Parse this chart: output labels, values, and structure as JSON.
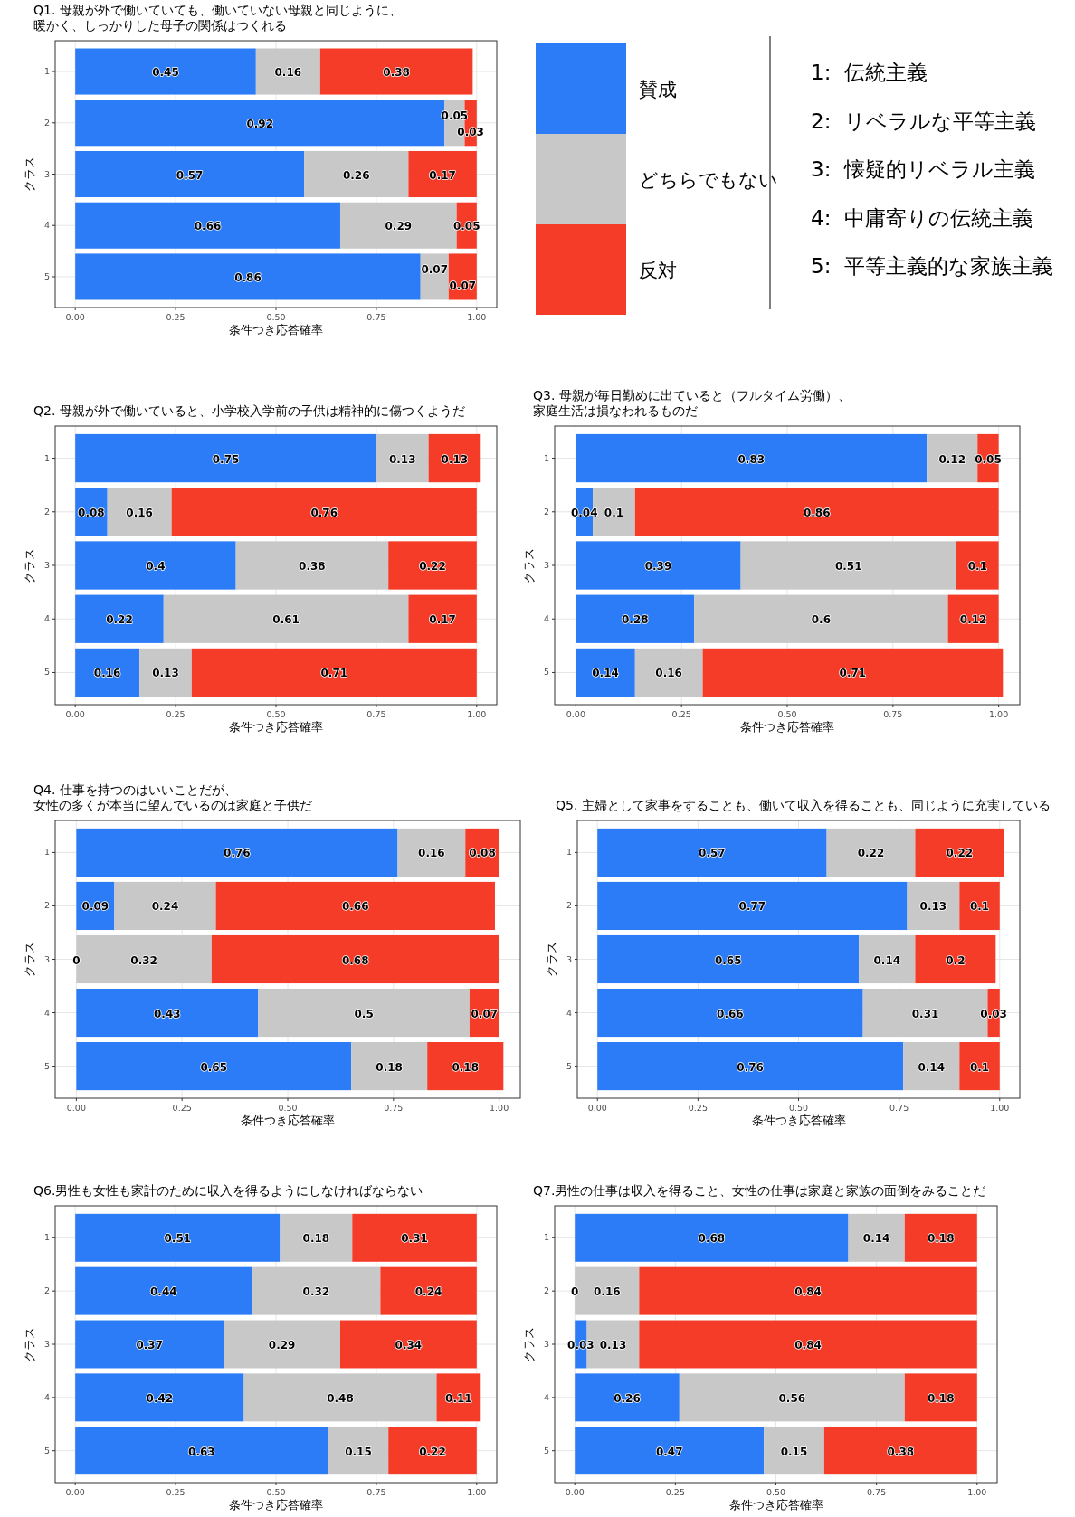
{
  "chart_data": [
    {
      "type": "bar",
      "orientation": "horizontal",
      "stacked": true,
      "title": "Q1. 母親が外で働いていても、働いていない母親と同じように、暖かく、しっかりした母子の関係はつくれる",
      "xlabel": "条件つき応答確率",
      "ylabel": "クラス",
      "categories": [
        "1",
        "2",
        "3",
        "4",
        "5"
      ],
      "series": [
        {
          "name": "賛成",
          "color": "#2b7cf6",
          "values": [
            0.45,
            0.92,
            0.57,
            0.66,
            0.86
          ]
        },
        {
          "name": "どちらでもない",
          "color": "#c8c8c8",
          "values": [
            0.16,
            0.05,
            0.26,
            0.29,
            0.07
          ]
        },
        {
          "name": "反対",
          "color": "#f43c28",
          "values": [
            0.38,
            0.03,
            0.17,
            0.05,
            0.07
          ]
        }
      ],
      "xlim": [
        -0.05,
        1.05
      ],
      "xticks": [
        {
          "value": 0,
          "label": "0.00"
        },
        {
          "value": 0.25,
          "label": "0.25"
        },
        {
          "value": 0.5,
          "label": "0.50"
        },
        {
          "value": 0.75,
          "label": "0.75"
        },
        {
          "value": 1,
          "label": "1.00"
        }
      ],
      "grid": true,
      "data_labels": true,
      "legend": "right"
    },
    {
      "type": "other",
      "annotations": [
        "1:  伝統主義",
        "2:  リベラルな平等主義",
        "3:  懐疑的リベラル主義",
        "4:  中庸寄りの伝統主義",
        "5:  平等主義的な家族主義"
      ]
    },
    {
      "type": "bar",
      "orientation": "horizontal",
      "stacked": true,
      "title": "Q2. 母親が外で働いていると、小学校入学前の子供は精神的に傷つくようだ",
      "xlabel": "条件つき応答確率",
      "ylabel": "クラス",
      "categories": [
        "1",
        "2",
        "3",
        "4",
        "5"
      ],
      "series": [
        {
          "color": "#2b7cf6",
          "values": [
            0.75,
            0.08,
            0.4,
            0.22,
            0.16
          ]
        },
        {
          "color": "#c8c8c8",
          "values": [
            0.13,
            0.16,
            0.38,
            0.61,
            0.13
          ]
        },
        {
          "color": "#f43c28",
          "values": [
            0.13,
            0.76,
            0.22,
            0.17,
            0.71
          ]
        }
      ],
      "xlim": [
        -0.05,
        1.05
      ],
      "xticks": [
        {
          "value": 0,
          "label": "0.00"
        },
        {
          "value": 0.25,
          "label": "0.25"
        },
        {
          "value": 0.5,
          "label": "0.50"
        },
        {
          "value": 0.75,
          "label": "0.75"
        },
        {
          "value": 1,
          "label": "1.00"
        }
      ],
      "grid": true,
      "data_labels": true
    },
    {
      "type": "bar",
      "orientation": "horizontal",
      "stacked": true,
      "title": "Q3. 母親が毎日勤めに出ていると（フルタイム労働）、家庭生活は損なわれるものだ",
      "xlabel": "条件つき応答確率",
      "ylabel": "クラス",
      "categories": [
        "1",
        "2",
        "3",
        "4",
        "5"
      ],
      "series": [
        {
          "color": "#2b7cf6",
          "values": [
            0.83,
            0.04,
            0.39,
            0.28,
            0.14
          ]
        },
        {
          "color": "#c8c8c8",
          "values": [
            0.12,
            0.1,
            0.51,
            0.6,
            0.16
          ]
        },
        {
          "color": "#f43c28",
          "values": [
            0.05,
            0.86,
            0.1,
            0.12,
            0.71
          ]
        }
      ],
      "xlim": [
        -0.05,
        1.05
      ],
      "xticks": [
        {
          "value": 0,
          "label": "0.00"
        },
        {
          "value": 0.25,
          "label": "0.25"
        },
        {
          "value": 0.5,
          "label": "0.50"
        },
        {
          "value": 0.75,
          "label": "0.75"
        },
        {
          "value": 1,
          "label": "1.00"
        }
      ],
      "grid": true,
      "data_labels": true
    },
    {
      "type": "bar",
      "orientation": "horizontal",
      "stacked": true,
      "title": "Q4. 仕事を持つのはいいことだが、女性の多くが本当に望んでいるのは家庭と子供だ",
      "xlabel": "条件つき応答確率",
      "ylabel": "クラス",
      "categories": [
        "1",
        "2",
        "3",
        "4",
        "5"
      ],
      "series": [
        {
          "color": "#2b7cf6",
          "values": [
            0.76,
            0.09,
            0,
            0.43,
            0.65
          ],
          "value_labels": [
            "0.76",
            "0.09",
            null,
            "0.43",
            "0.65"
          ]
        },
        {
          "color": "#c8c8c8",
          "values": [
            0.16,
            0.24,
            0.32,
            0.5,
            0.18
          ],
          "value_labels": [
            "0.16",
            "0.24",
            "0.32",
            "0.5",
            "0.18"
          ]
        },
        {
          "color": "#f43c28",
          "values": [
            0.08,
            0.66,
            0.68,
            0.07,
            0.18
          ],
          "value_labels": [
            "0.08",
            "0.66",
            "0.68",
            "0.07",
            "0.18"
          ]
        }
      ],
      "annotations": [
        {
          "text": "0",
          "x": 0,
          "y": "3"
        }
      ],
      "xlim": [
        -0.05,
        1.05
      ],
      "xticks": [
        {
          "value": 0,
          "label": "0.00"
        },
        {
          "value": 0.25,
          "label": "0.25"
        },
        {
          "value": 0.5,
          "label": "0.50"
        },
        {
          "value": 0.75,
          "label": "0.75"
        },
        {
          "value": 1,
          "label": "1.00"
        }
      ],
      "grid": true
    },
    {
      "type": "bar",
      "orientation": "horizontal",
      "stacked": true,
      "title": "Q5. 主婦として家事をすることも、働いて収入を得ることも、同じように充実している",
      "xlabel": "条件つき応答確率",
      "ylabel": "クラス",
      "categories": [
        "1",
        "2",
        "3",
        "4",
        "5"
      ],
      "series": [
        {
          "color": "#2b7cf6",
          "values": [
            0.57,
            0.77,
            0.65,
            0.66,
            0.76
          ]
        },
        {
          "color": "#c8c8c8",
          "values": [
            0.22,
            0.13,
            0.14,
            0.31,
            0.14
          ]
        },
        {
          "color": "#f43c28",
          "values": [
            0.22,
            0.1,
            0.2,
            0.03,
            0.1
          ]
        }
      ],
      "xlim": [
        -0.05,
        1.05
      ],
      "xticks": [
        {
          "value": 0,
          "label": "0.00"
        },
        {
          "value": 0.25,
          "label": "0.25"
        },
        {
          "value": 0.5,
          "label": "0.50"
        },
        {
          "value": 0.75,
          "label": "0.75"
        },
        {
          "value": 1,
          "label": "1.00"
        }
      ],
      "grid": true,
      "data_labels": true
    },
    {
      "type": "bar",
      "orientation": "horizontal",
      "stacked": true,
      "title": "Q6.男性も女性も家計のために収入を得るようにしなければならない",
      "xlabel": "条件つき応答確率",
      "ylabel": "クラス",
      "categories": [
        "1",
        "2",
        "3",
        "4",
        "5"
      ],
      "series": [
        {
          "color": "#2b7cf6",
          "values": [
            0.51,
            0.44,
            0.37,
            0.42,
            0.63
          ]
        },
        {
          "color": "#c8c8c8",
          "values": [
            0.18,
            0.32,
            0.29,
            0.48,
            0.15
          ]
        },
        {
          "color": "#f43c28",
          "values": [
            0.31,
            0.24,
            0.34,
            0.11,
            0.22
          ]
        }
      ],
      "xlim": [
        -0.05,
        1.05
      ],
      "xticks": [
        {
          "value": 0,
          "label": "0.00"
        },
        {
          "value": 0.25,
          "label": "0.25"
        },
        {
          "value": 0.5,
          "label": "0.50"
        },
        {
          "value": 0.75,
          "label": "0.75"
        },
        {
          "value": 1,
          "label": "1.00"
        }
      ],
      "grid": true,
      "data_labels": true
    },
    {
      "type": "bar",
      "orientation": "horizontal",
      "stacked": true,
      "title": "Q7.男性の仕事は収入を得ること、女性の仕事は家庭と家族の面倒をみることだ",
      "xlabel": "条件つき応答確率",
      "ylabel": "クラス",
      "categories": [
        "1",
        "2",
        "3",
        "4",
        "5"
      ],
      "series": [
        {
          "color": "#2b7cf6",
          "values": [
            0.68,
            0,
            0.03,
            0.26,
            0.47
          ],
          "value_labels": [
            "0.68",
            null,
            "0.03",
            "0.26",
            "0.47"
          ]
        },
        {
          "color": "#c8c8c8",
          "values": [
            0.14,
            0.16,
            0.13,
            0.56,
            0.15
          ],
          "value_labels": [
            "0.14",
            "0.16",
            "0.13",
            "0.56",
            "0.15"
          ]
        },
        {
          "color": "#f43c28",
          "values": [
            0.18,
            0.84,
            0.84,
            0.18,
            0.38
          ],
          "value_labels": [
            "0.18",
            "0.84",
            "0.84",
            "0.18",
            "0.38"
          ]
        }
      ],
      "annotations": [
        {
          "text": "0",
          "x": 0,
          "y": "2"
        }
      ],
      "xlim": [
        -0.05,
        1.05
      ],
      "xticks": [
        {
          "value": 0,
          "label": "0.00"
        },
        {
          "value": 0.25,
          "label": "0.25"
        },
        {
          "value": 0.5,
          "label": "0.50"
        },
        {
          "value": 0.75,
          "label": "0.75"
        },
        {
          "value": 1,
          "label": "1.00"
        }
      ],
      "grid": true
    }
  ]
}
